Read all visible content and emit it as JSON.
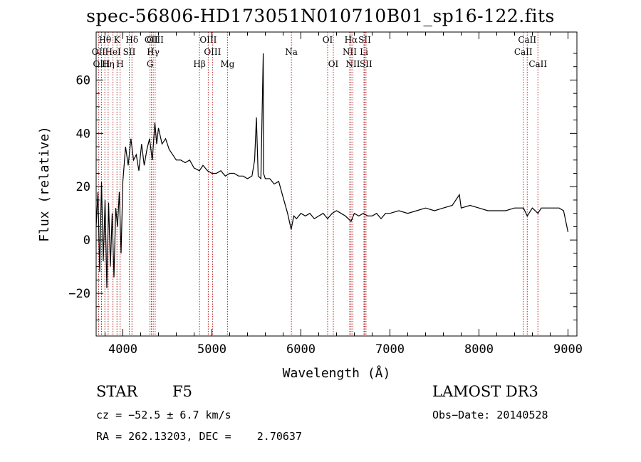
{
  "chart_data": {
    "type": "line",
    "title": "spec-56806-HD173051N010710B01_sp16-122.fits",
    "xlabel": "Wavelength (Å)",
    "ylabel": "Flux (relative)",
    "xlim": [
      3700,
      9100
    ],
    "ylim": [
      -36,
      78
    ],
    "xticks": [
      4000,
      5000,
      6000,
      7000,
      8000,
      9000
    ],
    "yticks": [
      -20,
      0,
      20,
      40,
      60
    ],
    "grid": false,
    "series": [
      {
        "color": "#000000",
        "x": [
          3700,
          3720,
          3740,
          3760,
          3780,
          3800,
          3820,
          3840,
          3860,
          3880,
          3900,
          3920,
          3940,
          3960,
          3980,
          4000,
          4030,
          4060,
          4090,
          4120,
          4150,
          4180,
          4210,
          4240,
          4270,
          4300,
          4330,
          4360,
          4380,
          4400,
          4440,
          4480,
          4520,
          4560,
          4600,
          4650,
          4700,
          4750,
          4800,
          4860,
          4900,
          4950,
          5000,
          5050,
          5100,
          5150,
          5200,
          5250,
          5300,
          5350,
          5400,
          5450,
          5480,
          5500,
          5520,
          5550,
          5577,
          5580,
          5600,
          5650,
          5700,
          5750,
          5800,
          5850,
          5890,
          5920,
          5950,
          6000,
          6050,
          6100,
          6150,
          6200,
          6250,
          6300,
          6350,
          6400,
          6450,
          6500,
          6563,
          6600,
          6650,
          6700,
          6750,
          6800,
          6850,
          6900,
          6950,
          7000,
          7100,
          7200,
          7300,
          7400,
          7500,
          7600,
          7700,
          7780,
          7800,
          7900,
          8000,
          8100,
          8200,
          8300,
          8400,
          8500,
          8542,
          8600,
          8662,
          8700,
          8800,
          8900,
          8950,
          9000
        ],
        "y": [
          5,
          18,
          -12,
          22,
          -8,
          15,
          -18,
          14,
          -10,
          10,
          -14,
          12,
          5,
          18,
          -5,
          22,
          35,
          28,
          38,
          30,
          32,
          26,
          36,
          28,
          34,
          38,
          30,
          44,
          36,
          42,
          36,
          38,
          34,
          32,
          30,
          30,
          29,
          30,
          27,
          26,
          28,
          26,
          25,
          25,
          26,
          24,
          25,
          25,
          24,
          24,
          23,
          24,
          30,
          46,
          24,
          23,
          70,
          25,
          23,
          23,
          21,
          22,
          16,
          10,
          4,
          9,
          8,
          10,
          9,
          10,
          8,
          9,
          10,
          8,
          10,
          11,
          10,
          9,
          7,
          10,
          9,
          10,
          9,
          9,
          10,
          8,
          10,
          10,
          11,
          10,
          11,
          12,
          11,
          12,
          13,
          17,
          12,
          13,
          12,
          11,
          11,
          11,
          12,
          12,
          9,
          12,
          10,
          12,
          12,
          12,
          11,
          3
        ]
      }
    ],
    "lines": [
      {
        "label": "Hθ",
        "x": 3798,
        "row": 0
      },
      {
        "label": "OII",
        "x": 3727,
        "row": 1
      },
      {
        "label": "OIII",
        "x": 3760,
        "row": 2
      },
      {
        "label": "K",
        "x": 3934,
        "row": 0
      },
      {
        "label": "HeI",
        "x": 3889,
        "row": 1
      },
      {
        "label": "Hη",
        "x": 3835,
        "row": 2
      },
      {
        "label": "SII",
        "x": 4072,
        "row": 1
      },
      {
        "label": "H",
        "x": 3969,
        "row": 2
      },
      {
        "label": "Hδ",
        "x": 4102,
        "row": 0
      },
      {
        "label": "OII",
        "x": 4320,
        "row": 0
      },
      {
        "label": "Hγ",
        "x": 4341,
        "row": 1
      },
      {
        "label": "G",
        "x": 4305,
        "row": 2
      },
      {
        "label": "OIII",
        "x": 4363,
        "row": 0
      },
      {
        "label": "OIII",
        "x": 4959,
        "row": 0
      },
      {
        "label": "OIII",
        "x": 5007,
        "row": 1
      },
      {
        "label": "Hβ",
        "x": 4861,
        "row": 2
      },
      {
        "label": "Mg",
        "x": 5175,
        "row": 2
      },
      {
        "label": "Na",
        "x": 5893,
        "row": 1
      },
      {
        "label": "OI",
        "x": 6300,
        "row": 0
      },
      {
        "label": "OI",
        "x": 6364,
        "row": 2
      },
      {
        "label": "Hα",
        "x": 6563,
        "row": 0
      },
      {
        "label": "NII",
        "x": 6548,
        "row": 1
      },
      {
        "label": "NII",
        "x": 6584,
        "row": 2
      },
      {
        "label": "SII",
        "x": 6716,
        "row": 0
      },
      {
        "label": "Li",
        "x": 6708,
        "row": 1
      },
      {
        "label": "SII",
        "x": 6731,
        "row": 2
      },
      {
        "label": "CaII",
        "x": 8542,
        "row": 0
      },
      {
        "label": "CaII",
        "x": 8498,
        "row": 1
      },
      {
        "label": "CaII",
        "x": 8662,
        "row": 2
      }
    ]
  },
  "info": {
    "object_class": "STAR",
    "subclass": "F5",
    "survey": "LAMOST DR3",
    "cz": "cz = −52.5 ± 6.7 km/s",
    "obs_date": "Obs−Date: 20140528",
    "coords": "RA = 262.13203, DEC =    2.70637"
  }
}
